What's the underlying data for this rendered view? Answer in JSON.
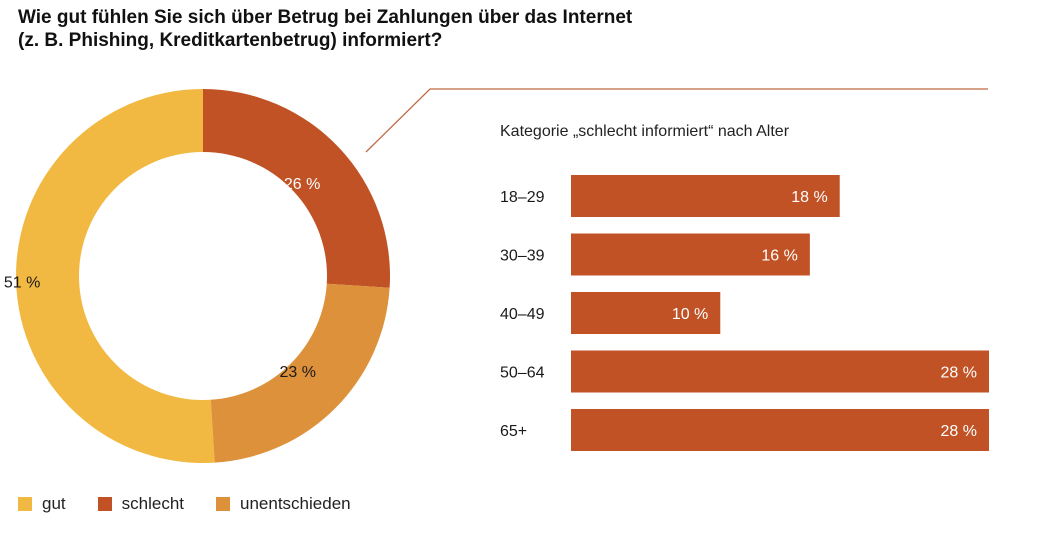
{
  "title": {
    "line1": "Wie gut fühlen Sie sich über Betrug bei Zahlungen über das Internet",
    "line2": "(z. B. Phishing, Kreditkartenbetrug) informiert?"
  },
  "colors": {
    "gut": "#F1B942",
    "schlecht": "#C05225",
    "unentschieden": "#DC913A",
    "connector": "#C06A45"
  },
  "chart_data": [
    {
      "type": "pie",
      "variant": "donut",
      "categories": [
        "gut",
        "schlecht",
        "unentschieden"
      ],
      "values": [
        51,
        26,
        23
      ],
      "labels": [
        "51 %",
        "26 %",
        "23 %"
      ],
      "legend": [
        "gut",
        "schlecht",
        "unentschieden"
      ],
      "legend_position": "bottom-left"
    },
    {
      "type": "bar",
      "orientation": "horizontal",
      "title": "Kategorie „schlecht informiert“ nach Alter",
      "categories": [
        "18–29",
        "30–39",
        "40–49",
        "50–64",
        "65+"
      ],
      "values": [
        18,
        16,
        10,
        28,
        28
      ],
      "labels": [
        "18 %",
        "16 %",
        "10 %",
        "28 %",
        "28 %"
      ],
      "xlim": [
        0,
        28
      ]
    }
  ]
}
